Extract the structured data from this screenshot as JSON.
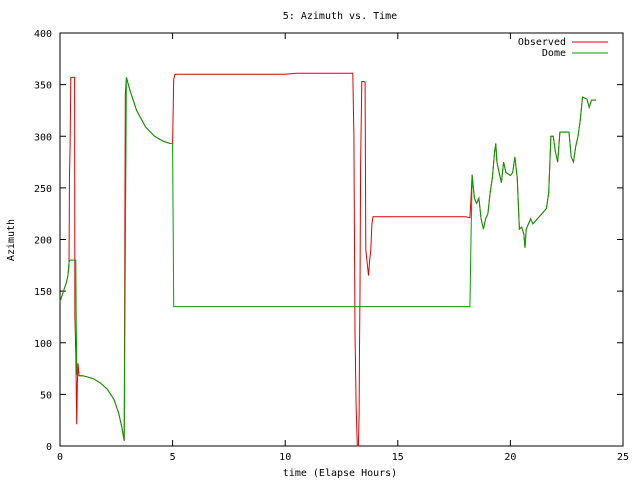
{
  "chart_data": {
    "type": "line",
    "title": "5: Azimuth vs. Time",
    "xlabel": "time (Elapse Hours)",
    "ylabel": "Azimuth",
    "xlim": [
      0,
      25
    ],
    "ylim": [
      0,
      400
    ],
    "xticks": [
      0,
      5,
      10,
      15,
      20,
      25
    ],
    "yticks": [
      0,
      50,
      100,
      150,
      200,
      250,
      300,
      350,
      400
    ],
    "grid": false,
    "legend_position": "top-right",
    "series": [
      {
        "name": "Observed",
        "color": "#e00000",
        "points": [
          [
            0.0,
            140
          ],
          [
            0.08,
            145
          ],
          [
            0.18,
            152
          ],
          [
            0.28,
            158
          ],
          [
            0.35,
            165
          ],
          [
            0.4,
            175
          ],
          [
            0.42,
            263
          ],
          [
            0.45,
            290
          ],
          [
            0.48,
            357
          ],
          [
            0.55,
            357
          ],
          [
            0.62,
            357
          ],
          [
            0.65,
            357
          ],
          [
            0.66,
            125
          ],
          [
            0.7,
            90
          ],
          [
            0.72,
            60
          ],
          [
            0.74,
            21
          ],
          [
            0.77,
            60
          ],
          [
            0.8,
            80
          ],
          [
            0.85,
            68
          ],
          [
            1.0,
            68
          ],
          [
            1.2,
            67
          ],
          [
            1.5,
            65
          ],
          [
            1.8,
            61
          ],
          [
            2.1,
            55
          ],
          [
            2.4,
            45
          ],
          [
            2.6,
            32
          ],
          [
            2.75,
            18
          ],
          [
            2.85,
            5
          ],
          [
            2.9,
            340
          ],
          [
            2.95,
            357
          ],
          [
            3.1,
            345
          ],
          [
            3.4,
            325
          ],
          [
            3.8,
            309
          ],
          [
            4.2,
            300
          ],
          [
            4.6,
            295
          ],
          [
            4.9,
            293
          ],
          [
            5.0,
            293
          ],
          [
            5.05,
            355
          ],
          [
            5.1,
            360
          ],
          [
            5.5,
            360
          ],
          [
            10.0,
            360
          ],
          [
            10.5,
            361
          ],
          [
            13.0,
            361
          ],
          [
            13.05,
            300
          ],
          [
            13.1,
            110
          ],
          [
            13.15,
            40
          ],
          [
            13.2,
            0
          ],
          [
            13.25,
            0
          ],
          [
            13.28,
            30
          ],
          [
            13.3,
            95
          ],
          [
            13.32,
            150
          ],
          [
            13.35,
            270
          ],
          [
            13.38,
            320
          ],
          [
            13.4,
            353
          ],
          [
            13.5,
            353
          ],
          [
            13.55,
            352
          ],
          [
            13.58,
            190
          ],
          [
            13.63,
            180
          ],
          [
            13.7,
            165
          ],
          [
            13.75,
            180
          ],
          [
            13.8,
            190
          ],
          [
            13.85,
            215
          ],
          [
            13.9,
            222
          ],
          [
            14.5,
            222
          ],
          [
            16.0,
            222
          ],
          [
            17.5,
            222
          ],
          [
            18.0,
            222
          ],
          [
            18.2,
            221
          ],
          [
            18.25,
            240
          ],
          [
            18.3,
            263
          ],
          [
            18.4,
            240
          ],
          [
            18.5,
            235
          ],
          [
            18.6,
            240
          ],
          [
            18.7,
            220
          ],
          [
            18.8,
            210
          ],
          [
            18.9,
            220
          ],
          [
            19.0,
            225
          ],
          [
            19.1,
            245
          ],
          [
            19.2,
            260
          ],
          [
            19.3,
            285
          ],
          [
            19.35,
            293
          ],
          [
            19.4,
            275
          ],
          [
            19.5,
            265
          ],
          [
            19.6,
            255
          ],
          [
            19.7,
            275
          ],
          [
            19.8,
            265
          ],
          [
            20.0,
            262
          ],
          [
            20.1,
            265
          ],
          [
            20.2,
            280
          ],
          [
            20.3,
            260
          ],
          [
            20.4,
            210
          ],
          [
            20.5,
            212
          ],
          [
            20.6,
            205
          ],
          [
            20.65,
            192
          ],
          [
            20.7,
            210
          ],
          [
            20.8,
            215
          ],
          [
            20.9,
            220
          ],
          [
            21.0,
            215
          ],
          [
            21.2,
            220
          ],
          [
            21.4,
            225
          ],
          [
            21.6,
            230
          ],
          [
            21.7,
            245
          ],
          [
            21.8,
            300
          ],
          [
            21.9,
            300
          ],
          [
            22.0,
            285
          ],
          [
            22.1,
            275
          ],
          [
            22.2,
            304
          ],
          [
            22.4,
            304
          ],
          [
            22.6,
            304
          ],
          [
            22.7,
            280
          ],
          [
            22.8,
            275
          ],
          [
            22.9,
            290
          ],
          [
            23.0,
            300
          ],
          [
            23.1,
            315
          ],
          [
            23.2,
            338
          ],
          [
            23.4,
            336
          ],
          [
            23.5,
            328
          ],
          [
            23.6,
            335
          ],
          [
            23.8,
            335
          ]
        ]
      },
      {
        "name": "Dome",
        "color": "#00a000",
        "points": [
          [
            0.0,
            140
          ],
          [
            0.08,
            145
          ],
          [
            0.18,
            152
          ],
          [
            0.28,
            158
          ],
          [
            0.35,
            165
          ],
          [
            0.4,
            178
          ],
          [
            0.45,
            180
          ],
          [
            0.6,
            180
          ],
          [
            0.7,
            180
          ],
          [
            0.72,
            120
          ],
          [
            0.75,
            70
          ],
          [
            0.8,
            68
          ],
          [
            1.0,
            68
          ],
          [
            1.2,
            67
          ],
          [
            1.5,
            65
          ],
          [
            1.8,
            61
          ],
          [
            2.1,
            55
          ],
          [
            2.4,
            45
          ],
          [
            2.6,
            32
          ],
          [
            2.75,
            18
          ],
          [
            2.85,
            5
          ],
          [
            2.95,
            357
          ],
          [
            3.1,
            345
          ],
          [
            3.4,
            325
          ],
          [
            3.8,
            309
          ],
          [
            4.2,
            300
          ],
          [
            4.6,
            295
          ],
          [
            4.9,
            293
          ],
          [
            5.0,
            293
          ],
          [
            5.05,
            135
          ],
          [
            6.0,
            135
          ],
          [
            10.0,
            135
          ],
          [
            14.0,
            135
          ],
          [
            18.0,
            135
          ],
          [
            18.2,
            135
          ],
          [
            18.25,
            200
          ],
          [
            18.3,
            262
          ],
          [
            18.4,
            240
          ],
          [
            18.5,
            235
          ],
          [
            18.6,
            240
          ],
          [
            18.7,
            220
          ],
          [
            18.8,
            210
          ],
          [
            18.9,
            220
          ],
          [
            19.0,
            225
          ],
          [
            19.1,
            245
          ],
          [
            19.2,
            260
          ],
          [
            19.3,
            285
          ],
          [
            19.35,
            293
          ],
          [
            19.4,
            275
          ],
          [
            19.5,
            265
          ],
          [
            19.6,
            255
          ],
          [
            19.7,
            275
          ],
          [
            19.8,
            265
          ],
          [
            20.0,
            262
          ],
          [
            20.1,
            265
          ],
          [
            20.2,
            280
          ],
          [
            20.3,
            260
          ],
          [
            20.4,
            210
          ],
          [
            20.5,
            212
          ],
          [
            20.6,
            205
          ],
          [
            20.65,
            192
          ],
          [
            20.7,
            210
          ],
          [
            20.8,
            215
          ],
          [
            20.9,
            220
          ],
          [
            21.0,
            215
          ],
          [
            21.2,
            220
          ],
          [
            21.4,
            225
          ],
          [
            21.6,
            230
          ],
          [
            21.7,
            245
          ],
          [
            21.8,
            300
          ],
          [
            21.9,
            300
          ],
          [
            22.0,
            285
          ],
          [
            22.1,
            275
          ],
          [
            22.2,
            304
          ],
          [
            22.4,
            304
          ],
          [
            22.6,
            304
          ],
          [
            22.7,
            280
          ],
          [
            22.8,
            275
          ],
          [
            22.9,
            290
          ],
          [
            23.0,
            300
          ],
          [
            23.1,
            315
          ],
          [
            23.2,
            338
          ],
          [
            23.4,
            336
          ],
          [
            23.5,
            328
          ],
          [
            23.6,
            335
          ],
          [
            23.8,
            335
          ]
        ]
      }
    ]
  }
}
